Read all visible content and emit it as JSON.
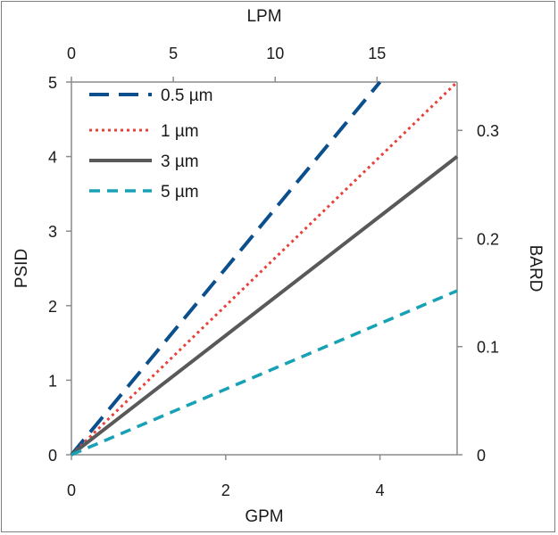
{
  "chart_data": {
    "type": "line",
    "title": "",
    "xlabel": "GPM",
    "ylabel": "PSID",
    "x2label": "LPM",
    "y2label": "BARD",
    "xlim": [
      0,
      5
    ],
    "ylim": [
      0,
      5
    ],
    "x2lim": [
      0,
      18.93
    ],
    "y2lim": [
      0,
      0.3447
    ],
    "x_ticks": [
      0,
      2,
      4
    ],
    "y_ticks": [
      0,
      1,
      2,
      3,
      4,
      5
    ],
    "x2_ticks": [
      0,
      5,
      10,
      15
    ],
    "y2_ticks": [
      0,
      0.1,
      0.2,
      0.3
    ],
    "x_tick_labels": [
      "0",
      "2",
      "4"
    ],
    "y_tick_labels": [
      "0",
      "1",
      "2",
      "3",
      "4",
      "5"
    ],
    "x2_tick_labels": [
      "0",
      "5",
      "10",
      "15"
    ],
    "y2_tick_labels": [
      "0",
      "0.1",
      "0.2",
      "0.3"
    ],
    "grid": false,
    "legend_position": "top-left",
    "series": [
      {
        "name": "0.5 µm",
        "x": [
          0,
          4
        ],
        "y": [
          0,
          5
        ],
        "color": "#0b4f8c",
        "style": "long-dash"
      },
      {
        "name": "1 µm",
        "x": [
          0,
          5
        ],
        "y": [
          0,
          5
        ],
        "color": "#e8413a",
        "style": "dotted"
      },
      {
        "name": "3 µm",
        "x": [
          0,
          5
        ],
        "y": [
          0,
          4
        ],
        "color": "#595959",
        "style": "solid"
      },
      {
        "name": "5 µm",
        "x": [
          0,
          5
        ],
        "y": [
          0,
          2.2
        ],
        "color": "#17a1b5",
        "style": "dash"
      }
    ]
  }
}
